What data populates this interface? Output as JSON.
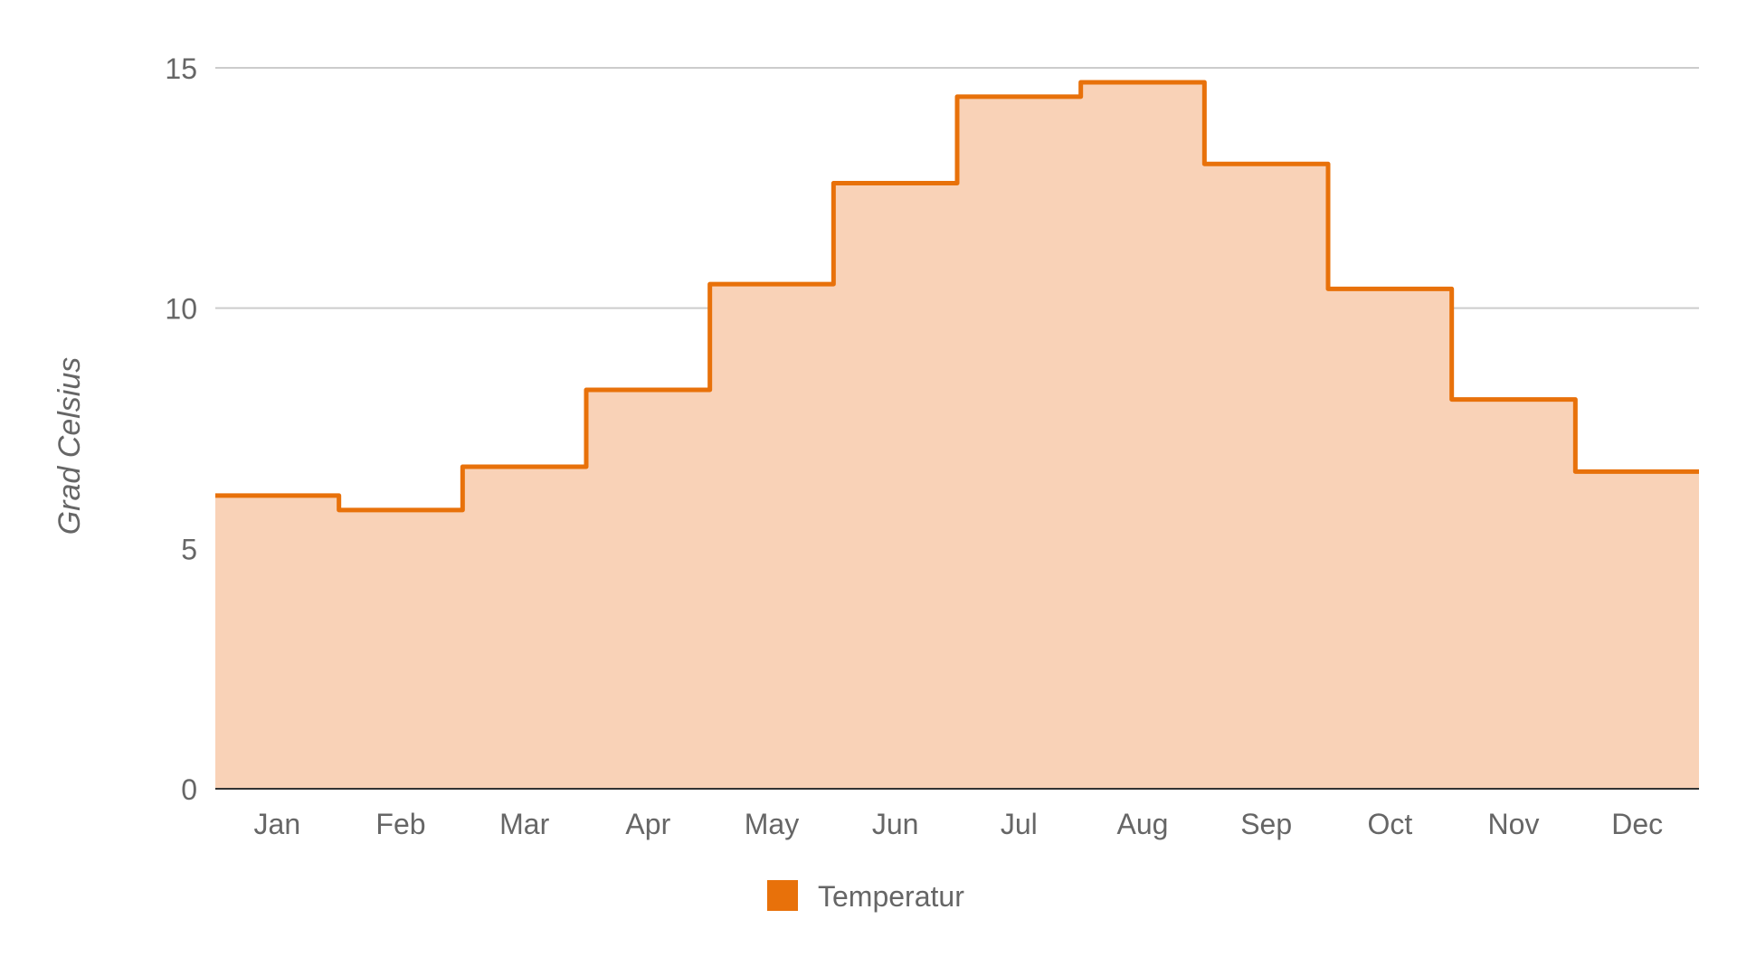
{
  "chart_data": {
    "type": "area",
    "step": true,
    "categories": [
      "Jan",
      "Feb",
      "Mar",
      "Apr",
      "May",
      "Jun",
      "Jul",
      "Aug",
      "Sep",
      "Oct",
      "Nov",
      "Dec"
    ],
    "series": [
      {
        "name": "Temperatur",
        "values": [
          6.1,
          5.8,
          6.7,
          8.3,
          10.5,
          12.6,
          14.4,
          14.7,
          13.0,
          10.4,
          8.1,
          6.6
        ],
        "color": "#e8710a",
        "fill": "#f9d2b7"
      }
    ],
    "title": "",
    "xlabel": "",
    "ylabel": "Grad Celsius",
    "ylim": [
      0,
      15
    ],
    "yticks": [
      0,
      5,
      10,
      15
    ],
    "grid": true,
    "legend": "bottom"
  }
}
